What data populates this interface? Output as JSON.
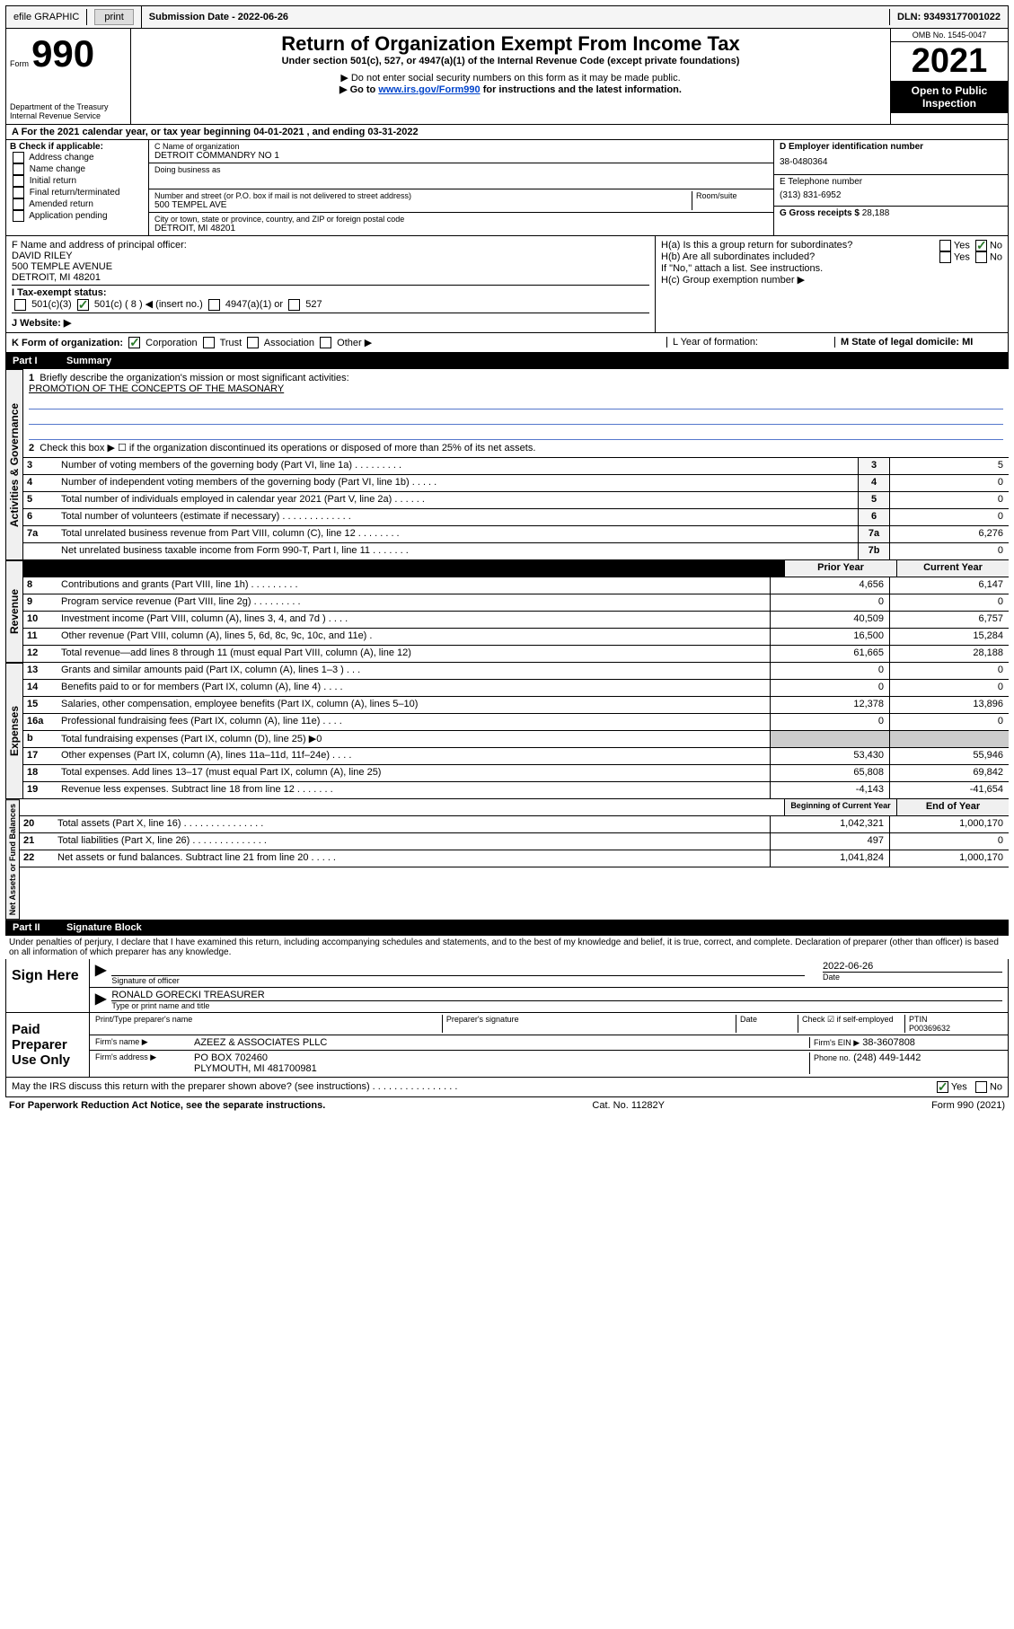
{
  "topbar": {
    "efile": "efile GRAPHIC",
    "print": "print",
    "submission_label": "Submission Date - 2022-06-26",
    "dln": "DLN: 93493177001022"
  },
  "header": {
    "form_prefix": "Form",
    "form_number": "990",
    "dept": "Department of the Treasury",
    "irs": "Internal Revenue Service",
    "title": "Return of Organization Exempt From Income Tax",
    "subtitle": "Under section 501(c), 527, or 4947(a)(1) of the Internal Revenue Code (except private foundations)",
    "note1": "▶ Do not enter social security numbers on this form as it may be made public.",
    "note2_pre": "▶ Go to ",
    "note2_link": "www.irs.gov/Form990",
    "note2_post": " for instructions and the latest information.",
    "omb": "OMB No. 1545-0047",
    "year": "2021",
    "open": "Open to Public Inspection"
  },
  "section_a": {
    "line": "A For the 2021 calendar year, or tax year beginning 04-01-2021   , and ending 03-31-2022",
    "b_label": "B Check if applicable:",
    "b_items": [
      "Address change",
      "Name change",
      "Initial return",
      "Final return/terminated",
      "Amended return",
      "Application pending"
    ],
    "c_label": "C Name of organization",
    "c_name": "DETROIT COMMANDRY NO 1",
    "dba_label": "Doing business as",
    "addr_label": "Number and street (or P.O. box if mail is not delivered to street address)",
    "room": "Room/suite",
    "addr": "500 TEMPEL AVE",
    "city_label": "City or town, state or province, country, and ZIP or foreign postal code",
    "city": "DETROIT, MI  48201",
    "d_label": "D Employer identification number",
    "d_val": "38-0480364",
    "e_label": "E Telephone number",
    "e_val": "(313) 831-6952",
    "g_label": "G Gross receipts $",
    "g_val": "28,188",
    "f_label": "F  Name and address of principal officer:",
    "f_name": "DAVID RILEY",
    "f_addr1": "500 TEMPLE AVENUE",
    "f_addr2": "DETROIT, MI  48201",
    "ha": "H(a)  Is this a group return for subordinates?",
    "hb": "H(b)  Are all subordinates included?",
    "hb_note": "If \"No,\" attach a list. See instructions.",
    "hc": "H(c)  Group exemption number ▶",
    "yes": "Yes",
    "no": "No",
    "i_label": "I  Tax-exempt status:",
    "i_501c3": "501(c)(3)",
    "i_501c": "501(c) ( 8 ) ◀ (insert no.)",
    "i_4947": "4947(a)(1) or",
    "i_527": "527",
    "j_label": "J  Website: ▶",
    "k_label": "K Form of organization:",
    "k_corp": "Corporation",
    "k_trust": "Trust",
    "k_assoc": "Association",
    "k_other": "Other ▶",
    "l_label": "L Year of formation:",
    "m_label": "M State of legal domicile: MI"
  },
  "part1": {
    "header": "Part I",
    "title": "Summary",
    "q1": "Briefly describe the organization's mission or most significant activities:",
    "mission": "PROMOTION OF THE CONCEPTS OF THE MASONARY",
    "q2": "Check this box ▶ ☐  if the organization discontinued its operations or disposed of more than 25% of its net assets.",
    "rows_gov": [
      {
        "n": "3",
        "t": "Number of voting members of the governing body (Part VI, line 1a)   .    .    .    .    .    .    .    .    .",
        "box": "3",
        "v": "5"
      },
      {
        "n": "4",
        "t": "Number of independent voting members of the governing body (Part VI, line 1b)  .    .    .    .    .",
        "box": "4",
        "v": "0"
      },
      {
        "n": "5",
        "t": "Total number of individuals employed in calendar year 2021 (Part V, line 2a)   .    .    .    .    .    .",
        "box": "5",
        "v": "0"
      },
      {
        "n": "6",
        "t": "Total number of volunteers (estimate if necessary)   .    .    .    .    .    .    .    .    .    .    .    .    .",
        "box": "6",
        "v": "0"
      },
      {
        "n": "7a",
        "t": "Total unrelated business revenue from Part VIII, column (C), line 12   .    .    .    .    .    .    .    .",
        "box": "7a",
        "v": "6,276"
      },
      {
        "n": "",
        "t": "Net unrelated business taxable income from Form 990-T, Part I, line 11   .    .    .    .    .    .    .",
        "box": "7b",
        "v": "0"
      }
    ],
    "col_prior": "Prior Year",
    "col_current": "Current Year",
    "rows_rev": [
      {
        "n": "8",
        "t": "Contributions and grants (Part VIII, line 1h)   .    .    .    .    .    .    .    .    .",
        "p": "4,656",
        "c": "6,147"
      },
      {
        "n": "9",
        "t": "Program service revenue (Part VIII, line 2g)   .    .    .    .    .    .    .    .    .",
        "p": "0",
        "c": "0"
      },
      {
        "n": "10",
        "t": "Investment income (Part VIII, column (A), lines 3, 4, and 7d )   .    .    .    .",
        "p": "40,509",
        "c": "6,757"
      },
      {
        "n": "11",
        "t": "Other revenue (Part VIII, column (A), lines 5, 6d, 8c, 9c, 10c, and 11e)   .",
        "p": "16,500",
        "c": "15,284"
      },
      {
        "n": "12",
        "t": "Total revenue—add lines 8 through 11 (must equal Part VIII, column (A), line 12)",
        "p": "61,665",
        "c": "28,188"
      }
    ],
    "rows_exp": [
      {
        "n": "13",
        "t": "Grants and similar amounts paid (Part IX, column (A), lines 1–3 )   .    .    .",
        "p": "0",
        "c": "0"
      },
      {
        "n": "14",
        "t": "Benefits paid to or for members (Part IX, column (A), line 4)   .    .    .    .",
        "p": "0",
        "c": "0"
      },
      {
        "n": "15",
        "t": "Salaries, other compensation, employee benefits (Part IX, column (A), lines 5–10)",
        "p": "12,378",
        "c": "13,896"
      },
      {
        "n": "16a",
        "t": "Professional fundraising fees (Part IX, column (A), line 11e)   .    .    .    .",
        "p": "0",
        "c": "0"
      },
      {
        "n": "b",
        "t": "Total fundraising expenses (Part IX, column (D), line 25) ▶0",
        "p": "",
        "c": "",
        "gray": true
      },
      {
        "n": "17",
        "t": "Other expenses (Part IX, column (A), lines 11a–11d, 11f–24e)   .    .    .    .",
        "p": "53,430",
        "c": "55,946"
      },
      {
        "n": "18",
        "t": "Total expenses. Add lines 13–17 (must equal Part IX, column (A), line 25)",
        "p": "65,808",
        "c": "69,842"
      },
      {
        "n": "19",
        "t": "Revenue less expenses. Subtract line 18 from line 12   .    .    .    .    .    .    .",
        "p": "-4,143",
        "c": "-41,654"
      }
    ],
    "col_begin": "Beginning of Current Year",
    "col_end": "End of Year",
    "rows_net": [
      {
        "n": "20",
        "t": "Total assets (Part X, line 16)   .    .    .    .    .    .    .    .    .    .    .    .    .    .    .",
        "p": "1,042,321",
        "c": "1,000,170"
      },
      {
        "n": "21",
        "t": "Total liabilities (Part X, line 26)   .    .    .    .    .    .    .    .    .    .    .    .    .    .",
        "p": "497",
        "c": "0"
      },
      {
        "n": "22",
        "t": "Net assets or fund balances. Subtract line 21 from line 20   .    .    .    .    .",
        "p": "1,041,824",
        "c": "1,000,170"
      }
    ],
    "vlabels": {
      "gov": "Activities & Governance",
      "rev": "Revenue",
      "exp": "Expenses",
      "net": "Net Assets or Fund Balances"
    }
  },
  "part2": {
    "header": "Part II",
    "title": "Signature Block",
    "decl": "Under penalties of perjury, I declare that I have examined this return, including accompanying schedules and statements, and to the best of my knowledge and belief, it is true, correct, and complete. Declaration of preparer (other than officer) is based on all information of which preparer has any knowledge.",
    "sign_here": "Sign Here",
    "sig_officer": "Signature of officer",
    "date": "Date",
    "date_val": "2022-06-26",
    "officer_name": "RONALD GORECKI  TREASURER",
    "type_name": "Type or print name and title",
    "paid": "Paid Preparer Use Only",
    "prep_name_h": "Print/Type preparer's name",
    "prep_sig_h": "Preparer's signature",
    "date_h": "Date",
    "check_self": "Check ☑ if self-employed",
    "ptin_h": "PTIN",
    "ptin": "P00369632",
    "firm_name_l": "Firm's name    ▶",
    "firm_name": "AZEEZ & ASSOCIATES PLLC",
    "firm_ein_l": "Firm's EIN ▶",
    "firm_ein": "38-3607808",
    "firm_addr_l": "Firm's address ▶",
    "firm_addr": "PO BOX 702460",
    "firm_addr2": "PLYMOUTH, MI  481700981",
    "phone_l": "Phone no.",
    "phone": "(248) 449-1442",
    "may_irs": "May the IRS discuss this return with the preparer shown above? (see instructions)   .    .    .    .    .    .    .    .    .    .    .    .    .    .    .    .",
    "yes": "Yes",
    "no": "No"
  },
  "footer": {
    "left": "For Paperwork Reduction Act Notice, see the separate instructions.",
    "mid": "Cat. No. 11282Y",
    "right": "Form 990 (2021)"
  }
}
